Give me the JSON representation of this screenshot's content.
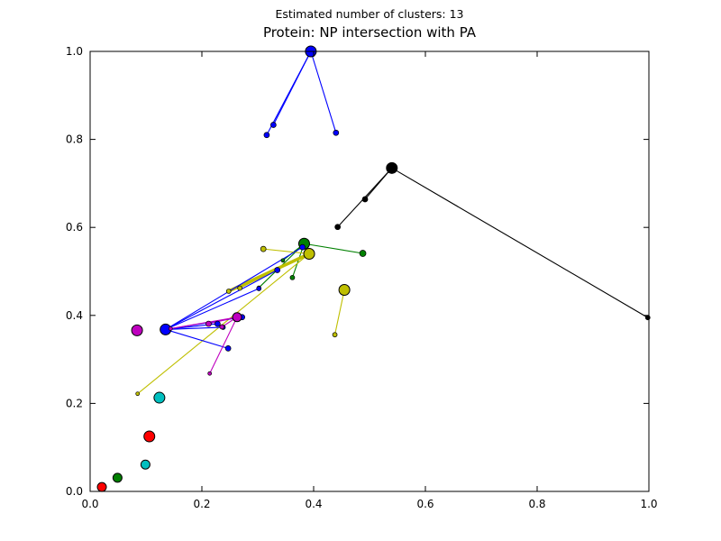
{
  "header": {
    "line1": "Estimated number of clusters: 13",
    "line2": "Protein: NP intersection with PA"
  },
  "chart_data": {
    "type": "scatter",
    "suptitle": "Estimated number of clusters: 13",
    "title": "Protein: NP intersection with PA",
    "n_clusters": 13,
    "xlim": [
      0.0,
      1.0
    ],
    "ylim": [
      0.0,
      1.0
    ],
    "xticks": [
      0.0,
      0.2,
      0.4,
      0.6,
      0.8,
      1.0
    ],
    "xtick_labels": [
      "0.0",
      "0.2",
      "0.4",
      "0.6",
      "0.8",
      "1.0"
    ],
    "yticks": [
      0.0,
      0.2,
      0.4,
      0.6,
      0.8,
      1.0
    ],
    "ytick_labels": [
      "0.0",
      "0.2",
      "0.4",
      "0.6",
      "0.8",
      "1.0"
    ],
    "grid": false,
    "legend": "none",
    "marker_edge_color": "#000000",
    "clusters": [
      {
        "name": "cluster-blue-top",
        "color": "#0000ff",
        "center": {
          "x": 0.395,
          "y": 1.0,
          "r": 6
        },
        "members": [
          {
            "x": 0.316,
            "y": 0.81,
            "r": 3
          },
          {
            "x": 0.328,
            "y": 0.833,
            "r": 3
          },
          {
            "x": 0.44,
            "y": 0.815,
            "r": 3
          }
        ]
      },
      {
        "name": "cluster-black",
        "color": "#000000",
        "center": {
          "x": 0.54,
          "y": 0.735,
          "r": 6
        },
        "members": [
          {
            "x": 0.443,
            "y": 0.601,
            "r": 3
          },
          {
            "x": 0.492,
            "y": 0.664,
            "r": 3
          },
          {
            "x": 0.998,
            "y": 0.395,
            "r": 2.5
          }
        ]
      },
      {
        "name": "cluster-green-mid",
        "color": "#008000",
        "center": {
          "x": 0.383,
          "y": 0.563,
          "r": 6
        },
        "members": [
          {
            "x": 0.488,
            "y": 0.541,
            "r": 3.5
          },
          {
            "x": 0.362,
            "y": 0.486,
            "r": 2.5
          },
          {
            "x": 0.345,
            "y": 0.525,
            "r": 2
          },
          {
            "x": 0.302,
            "y": 0.463,
            "r": 2
          }
        ]
      },
      {
        "name": "cluster-yellow-mid",
        "color": "#bfbf00",
        "center": {
          "x": 0.392,
          "y": 0.54,
          "r": 6
        },
        "members": [
          {
            "x": 0.31,
            "y": 0.551,
            "r": 3
          },
          {
            "x": 0.248,
            "y": 0.455,
            "r": 2.5,
            "lw": 3.5
          },
          {
            "x": 0.268,
            "y": 0.462,
            "r": 2.5
          },
          {
            "x": 0.085,
            "y": 0.222,
            "r": 2
          }
        ]
      },
      {
        "name": "cluster-yellow-right",
        "color": "#bfbf00",
        "center": {
          "x": 0.455,
          "y": 0.458,
          "r": 6
        },
        "members": [
          {
            "x": 0.438,
            "y": 0.356,
            "r": 2.5
          }
        ]
      },
      {
        "name": "cluster-blue-mid",
        "color": "#0000ff",
        "center": {
          "x": 0.135,
          "y": 0.368,
          "r": 6
        },
        "members": [
          {
            "x": 0.38,
            "y": 0.555,
            "r": 3
          },
          {
            "x": 0.335,
            "y": 0.503,
            "r": 3
          },
          {
            "x": 0.302,
            "y": 0.461,
            "r": 2.5
          },
          {
            "x": 0.272,
            "y": 0.396,
            "r": 3
          },
          {
            "x": 0.247,
            "y": 0.325,
            "r": 3
          },
          {
            "x": 0.228,
            "y": 0.381,
            "r": 3
          },
          {
            "x": 0.238,
            "y": 0.373,
            "r": 2.5
          }
        ]
      },
      {
        "name": "cluster-magenta",
        "color": "#bf00bf",
        "center": {
          "x": 0.263,
          "y": 0.396,
          "r": 5
        },
        "members": [
          {
            "x": 0.212,
            "y": 0.381,
            "r": 3
          },
          {
            "x": 0.236,
            "y": 0.374,
            "r": 2.5
          },
          {
            "x": 0.214,
            "y": 0.268,
            "r": 2
          },
          {
            "x": 0.144,
            "y": 0.37,
            "r": 2
          }
        ]
      },
      {
        "name": "cluster-magenta-lone",
        "color": "#bf00bf",
        "center": {
          "x": 0.084,
          "y": 0.366,
          "r": 6
        },
        "members": []
      },
      {
        "name": "cluster-cyan-lone",
        "color": "#00bfbf",
        "center": {
          "x": 0.124,
          "y": 0.213,
          "r": 6
        },
        "members": []
      },
      {
        "name": "cluster-red-lone",
        "color": "#ff0000",
        "center": {
          "x": 0.106,
          "y": 0.125,
          "r": 6
        },
        "members": []
      },
      {
        "name": "cluster-cyan2-lone",
        "color": "#00bfbf",
        "center": {
          "x": 0.099,
          "y": 0.061,
          "r": 5
        },
        "members": []
      },
      {
        "name": "cluster-green2-lone",
        "color": "#008000",
        "center": {
          "x": 0.049,
          "y": 0.031,
          "r": 5
        },
        "members": []
      },
      {
        "name": "cluster-red2-lone",
        "color": "#ff0000",
        "center": {
          "x": 0.021,
          "y": 0.01,
          "r": 5
        },
        "members": []
      }
    ]
  }
}
